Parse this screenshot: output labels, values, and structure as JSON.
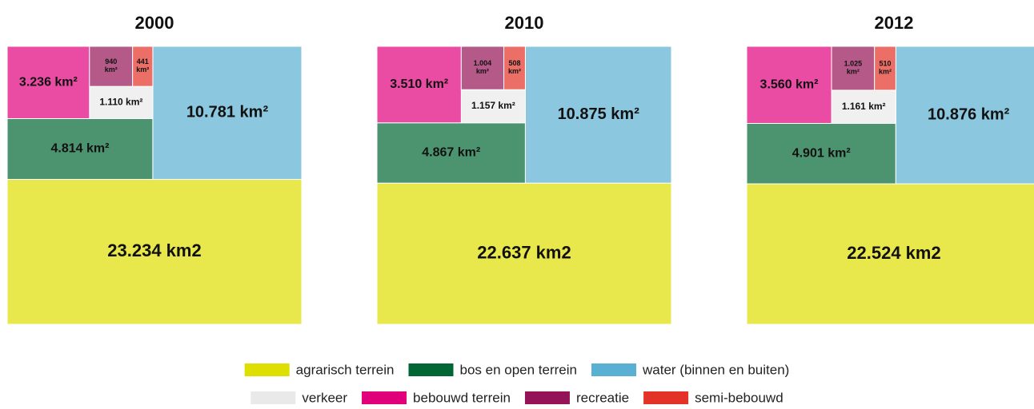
{
  "chart_data": [
    {
      "type": "treemap",
      "title": "2000",
      "categories": [
        "agrarisch terrein",
        "bos en open terrein",
        "water (binnen en buiten)",
        "verkeer",
        "bebouwd terrein",
        "recreatie",
        "semi-bebouwd"
      ],
      "values": [
        23234,
        4814,
        10781,
        1110,
        3236,
        940,
        441
      ],
      "value_labels": [
        "23.234 km2",
        "4.814 km²",
        "10.781 km²",
        "1.110 km²",
        "3.236 km²",
        "940 km²",
        "441 km²"
      ],
      "colors": [
        "#dede00",
        "#006633",
        "#5ab0d2",
        "#e9e9e9",
        "#e0007a",
        "#951357",
        "#e33227"
      ]
    },
    {
      "type": "treemap",
      "title": "2010",
      "categories": [
        "agrarisch terrein",
        "bos en open terrein",
        "water (binnen en buiten)",
        "verkeer",
        "bebouwd terrein",
        "recreatie",
        "semi-bebouwd"
      ],
      "values": [
        22637,
        4867,
        10875,
        1157,
        3510,
        1004,
        508
      ],
      "value_labels": [
        "22.637 km2",
        "4.867 km²",
        "10.875 km²",
        "1.157 km²",
        "3.510 km²",
        "1.004 km²",
        "508 km²"
      ],
      "colors": [
        "#dede00",
        "#006633",
        "#5ab0d2",
        "#e9e9e9",
        "#e0007a",
        "#951357",
        "#e33227"
      ]
    },
    {
      "type": "treemap",
      "title": "2012",
      "categories": [
        "agrarisch terrein",
        "bos en open terrein",
        "water (binnen en buiten)",
        "verkeer",
        "bebouwd terrein",
        "recreatie",
        "semi-bebouwd"
      ],
      "values": [
        22524,
        4901,
        10876,
        1161,
        3560,
        1025,
        510
      ],
      "value_labels": [
        "22.524 km2",
        "4.901 km²",
        "10.876 km²",
        "1.161 km²",
        "3.560 km²",
        "1.025 km²",
        "510 km²"
      ],
      "colors": [
        "#dede00",
        "#006633",
        "#5ab0d2",
        "#e9e9e9",
        "#e0007a",
        "#951357",
        "#e33227"
      ]
    }
  ]
}
